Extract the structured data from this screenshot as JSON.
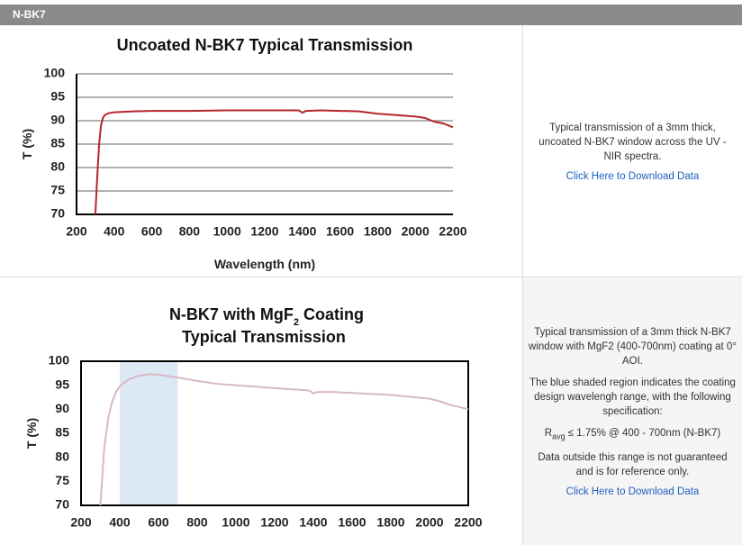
{
  "header": {
    "title": "N-BK7"
  },
  "chart_data": [
    {
      "type": "line",
      "title": "Uncoated N-BK7 Typical Transmission",
      "x_label": "Wavelength (nm)",
      "y_label": "T (%)",
      "x": [
        300,
        310,
        320,
        330,
        340,
        350,
        370,
        400,
        500,
        600,
        800,
        1000,
        1200,
        1380,
        1400,
        1420,
        1500,
        1600,
        1700,
        1800,
        1900,
        2000,
        2050,
        2100,
        2150,
        2200
      ],
      "values": [
        70,
        78,
        85,
        89,
        90.6,
        91.2,
        91.6,
        91.8,
        92,
        92.1,
        92.1,
        92.2,
        92.2,
        92.2,
        91.7,
        92.1,
        92.2,
        92.1,
        92,
        91.5,
        91.2,
        90.9,
        90.6,
        89.8,
        89.4,
        88.6
      ],
      "color": "#b5262d",
      "grid": true,
      "frame": false,
      "xlim": [
        200,
        2200
      ],
      "xticks": [
        200,
        400,
        600,
        800,
        1000,
        1200,
        1400,
        1600,
        1800,
        2000,
        2200
      ],
      "ylim": [
        70,
        100
      ],
      "yticks": [
        70,
        75,
        80,
        85,
        90,
        95,
        100
      ]
    },
    {
      "type": "line",
      "title_parts": {
        "before": "N-BK7 with MgF",
        "sub": "2",
        "after": " Coating",
        "line2": "Typical Transmission"
      },
      "y_label": "T (%)",
      "x": [
        300,
        320,
        340,
        360,
        380,
        400,
        450,
        500,
        550,
        600,
        700,
        800,
        900,
        1000,
        1200,
        1380,
        1400,
        1420,
        1500,
        1600,
        1800,
        1900,
        2000,
        2050,
        2100,
        2150,
        2200
      ],
      "values": [
        70,
        82,
        88,
        91.5,
        93.5,
        94.8,
        96.3,
        97,
        97.3,
        97.2,
        96.6,
        95.9,
        95.3,
        95,
        94.4,
        93.9,
        93.3,
        93.6,
        93.6,
        93.4,
        93,
        92.6,
        92.2,
        91.7,
        91,
        90.5,
        90
      ],
      "color": "#d8b9c3",
      "grid": false,
      "frame": true,
      "shaded_range": [
        400,
        700
      ],
      "shade_color": "#dce9f5",
      "xlim": [
        200,
        2200
      ],
      "xticks": [
        200,
        400,
        600,
        800,
        1000,
        1200,
        1400,
        1600,
        1800,
        2000,
        2200
      ],
      "ylim": [
        70,
        100
      ],
      "yticks": [
        70,
        75,
        80,
        85,
        90,
        95,
        100
      ]
    }
  ],
  "rows": [
    {
      "paragraphs": [
        "Typical transmission of a 3mm thick, uncoated N-BK7 window across the UV - NIR spectra."
      ],
      "link": "Click Here to Download Data"
    },
    {
      "paragraphs": [
        "Typical transmission of a 3mm thick N-BK7 window with MgF2 (400-700nm) coating at 0° AOI.",
        "The blue shaded region indicates the coating design wavelengh range, with the following specification:"
      ],
      "spec": {
        "symbol": "R",
        "sub": "avg",
        "text": " ≤ 1.75% @ 400 - 700nm (N-BK7)"
      },
      "note": "Data outside this range is not guaranteed and is for reference only.",
      "link": "Click Here to Download Data"
    }
  ]
}
